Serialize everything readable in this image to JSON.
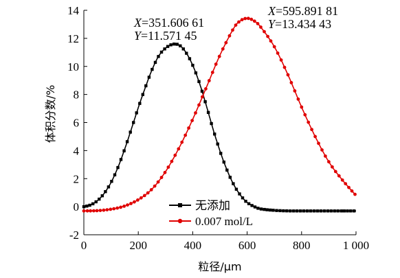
{
  "chart_data": {
    "type": "line",
    "xlabel": "粒径/μm",
    "ylabel": "体积分数/%",
    "xlim": [
      0,
      1000
    ],
    "ylim": [
      -2,
      14
    ],
    "xticks": [
      0,
      200,
      400,
      600,
      800,
      1000
    ],
    "xtick_labels": [
      "0",
      "200",
      "400",
      "600",
      "800",
      "1 000"
    ],
    "yticks": [
      -2,
      0,
      2,
      4,
      6,
      8,
      10,
      12,
      14
    ],
    "ytick_labels": [
      "-2",
      "0",
      "2",
      "4",
      "6",
      "8",
      "10",
      "12",
      "14"
    ],
    "grid": false,
    "legend_position": "bottom-center",
    "series": [
      {
        "name": "无添加",
        "color": "#000000",
        "marker": "square",
        "x": [
          0,
          25,
          50,
          75,
          100,
          125,
          150,
          175,
          200,
          225,
          250,
          275,
          300,
          325,
          350,
          375,
          400,
          425,
          450,
          475,
          500,
          525,
          550,
          575,
          600,
          625,
          650,
          700,
          750,
          800,
          850,
          900,
          950,
          1000
        ],
        "values": [
          0.0,
          0.13,
          0.43,
          0.96,
          1.73,
          2.79,
          4.1,
          5.56,
          7.06,
          8.45,
          9.74,
          10.74,
          11.3,
          11.57,
          11.52,
          11.0,
          10.08,
          8.8,
          7.21,
          5.51,
          3.98,
          2.66,
          1.6,
          0.83,
          0.3,
          0.02,
          -0.16,
          -0.26,
          -0.3,
          -0.3,
          -0.3,
          -0.3,
          -0.3,
          -0.3
        ]
      },
      {
        "name": "0.007 mol/L",
        "color": "#e00000",
        "marker": "circle",
        "x": [
          0,
          50,
          100,
          150,
          200,
          250,
          300,
          350,
          400,
          450,
          500,
          550,
          575,
          600,
          625,
          650,
          700,
          750,
          800,
          850,
          900,
          950,
          1000
        ],
        "values": [
          -0.3,
          -0.28,
          -0.18,
          0.05,
          0.5,
          1.25,
          2.5,
          4.2,
          6.23,
          8.5,
          10.8,
          12.7,
          13.25,
          13.43,
          13.25,
          12.8,
          11.4,
          9.4,
          7.1,
          5.0,
          3.2,
          1.9,
          0.8
        ]
      }
    ],
    "annotations": [
      {
        "lines": [
          "X=351.606 61",
          "Y=11.571 45"
        ],
        "point": [
          351.60661,
          11.57145
        ]
      },
      {
        "lines": [
          "X=595.891 81",
          "Y=13.434 43"
        ],
        "point": [
          595.89181,
          13.43443
        ]
      }
    ]
  }
}
